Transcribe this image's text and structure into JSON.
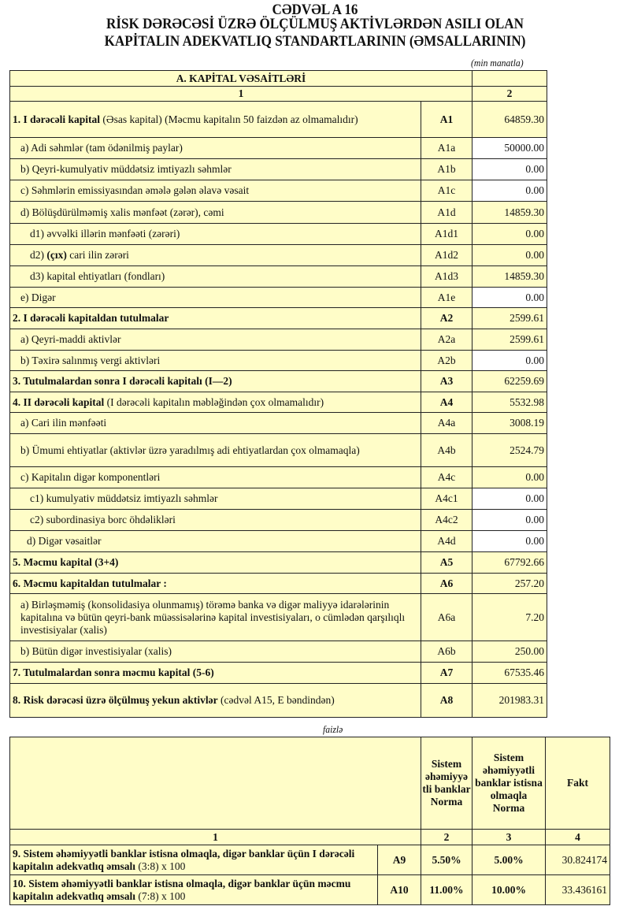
{
  "header": {
    "line1": "CƏDVƏL A 16",
    "line2": "RİSK DƏRƏCƏSİ ÜZRƏ ÖLÇÜLMUŞ AKTİVLƏRDƏN ASILI OLAN",
    "line3": "KAPİTALIN ADEKVATLIQ STANDARTLARININ (ƏMSALLARININ)",
    "unit": "(min manatla)"
  },
  "table1": {
    "section_title": "A. KAPİTAL VƏSAİTLƏRİ",
    "col_numbers": [
      "1",
      "2"
    ],
    "rows": [
      {
        "parts": [
          {
            "t": "1. I dərəcəli kapital",
            "b": true
          },
          {
            "t": " (Əsas kapital) (Məcmu kapitalın 50 faizdən  az olmamalıdır)"
          }
        ],
        "code": "A1",
        "code_bold": true,
        "value": "64859.30",
        "value_bg": "yellow"
      },
      {
        "parts": [
          {
            "t": "a) Adi səhmlər (tam ödənilmiş paylar)"
          }
        ],
        "code": "A1a",
        "value": "50000.00",
        "value_bg": "white"
      },
      {
        "parts": [
          {
            "t": "b) Qeyri-kumulyativ müddətsiz imtiyazlı səhmlər"
          }
        ],
        "code": "A1b",
        "value": "0.00",
        "value_bg": "white"
      },
      {
        "parts": [
          {
            "t": "c) Səhmlərin emissiyasından əmələ gələn  əlavə vəsait"
          }
        ],
        "code": "A1c",
        "value": "0.00",
        "value_bg": "white"
      },
      {
        "parts": [
          {
            "t": "d)   Bölüşdürülməmiş xalis mənfəət (zərər), cəmi"
          }
        ],
        "code": "A1d",
        "value": "14859.30",
        "value_bg": "yellow"
      },
      {
        "parts": [
          {
            "t": "d1) əvvəlki illərin mənfəəti (zərəri)"
          }
        ],
        "code": "A1d1",
        "value": "0.00",
        "value_bg": "yellow"
      },
      {
        "parts": [
          {
            "t": "d2) "
          },
          {
            "t": "(çıx)",
            "b": true
          },
          {
            "t": " cari ilin zərəri"
          }
        ],
        "code": "A1d2",
        "value": "0.00",
        "value_bg": "yellow"
      },
      {
        "parts": [
          {
            "t": "d3) kapital ehtiyatları (fondları)"
          }
        ],
        "code": "A1d3",
        "value": "14859.30",
        "value_bg": "yellow"
      },
      {
        "parts": [
          {
            "t": "e) Digər"
          }
        ],
        "code": "A1e",
        "value": "0.00",
        "value_bg": "white"
      },
      {
        "parts": [
          {
            "t": "2. I dərəcəli kapitaldan  tutulmalar",
            "b": true
          }
        ],
        "code": "A2",
        "code_bold": true,
        "value": "2599.61",
        "value_bg": "yellow"
      },
      {
        "parts": [
          {
            "t": "a) Qeyri-maddi aktivlər"
          }
        ],
        "code": "A2a",
        "value": "2599.61",
        "value_bg": "yellow"
      },
      {
        "parts": [
          {
            "t": "b) Təxirə salınmış vergi aktivləri"
          }
        ],
        "code": "A2b",
        "value": "0.00",
        "value_bg": "white"
      },
      {
        "parts": [
          {
            "t": "3. Tutulmalardan  sonra I dərəcəli kapitalı (I—2)",
            "b": true
          }
        ],
        "code": "A3",
        "code_bold": true,
        "value": "62259.69",
        "value_bg": "yellow"
      },
      {
        "parts": [
          {
            "t": "4. II dərəcəli  kapital",
            "b": true
          },
          {
            "t": " (I dərəcəli  kapitalın  məbləğindən çox olmamalıdır)"
          }
        ],
        "code": "A4",
        "code_bold": true,
        "value": "5532.98",
        "value_bg": "yellow"
      },
      {
        "parts": [
          {
            "t": "a) Cari ilin mənfəəti"
          }
        ],
        "code": "A4a",
        "value": "3008.19",
        "value_bg": "yellow"
      },
      {
        "parts": [
          {
            "t": "b) Ümumi ehtiyatlar (aktivlər üzrə yaradılmış adi ehtiyatlardan çox olmamaqla)"
          }
        ],
        "code": "A4b",
        "value": "2524.79",
        "value_bg": "yellow"
      },
      {
        "parts": [
          {
            "t": "c)  Kapitalın digər komponentləri"
          }
        ],
        "code": "A4c",
        "value": "0.00",
        "value_bg": "yellow"
      },
      {
        "parts": [
          {
            "t": "c1) kumulyativ müddətsiz imtiyazlı səhmlər"
          }
        ],
        "code": "A4c1",
        "value": "0.00",
        "value_bg": "white"
      },
      {
        "parts": [
          {
            "t": "c2) subordinasiya borc öhdəlikləri"
          }
        ],
        "code": "A4c2",
        "value": "0.00",
        "value_bg": "white"
      },
      {
        "parts": [
          {
            "t": "d) Digər vəsaitlər"
          }
        ],
        "code": "A4d",
        "value": "0.00",
        "value_bg": "white"
      },
      {
        "parts": [
          {
            "t": "5. Məcmu kapital (3+4)",
            "b": true
          }
        ],
        "code": "A5",
        "code_bold": true,
        "value": "67792.66",
        "value_bg": "yellow"
      },
      {
        "parts": [
          {
            "t": "6. Məcmu kapitaldan tutulmalar :",
            "b": true
          }
        ],
        "code": "A6",
        "code_bold": true,
        "value": "257.20",
        "value_bg": "yellow"
      },
      {
        "parts": [
          {
            "t": "a)   Birləşməmiş (konsolidasiya olunmamış) törəmə banka və digər maliyyə idarələrinin kapitalına və bütün qeyri-bank müəssisələrinə kapital investisiyaları, o cümlədən qarşılıqlı investisiyalar (xalis)"
          }
        ],
        "code": "A6a",
        "value": "7.20",
        "value_bg": "yellow"
      },
      {
        "parts": [
          {
            "t": "b)    Bütün digər investisiyalar (xalis)"
          }
        ],
        "code": "A6b",
        "value": "250.00",
        "value_bg": "yellow"
      },
      {
        "parts": [
          {
            "t": "7. Tutulmalardan  sonra məcmu kapital (5-6)",
            "b": true
          }
        ],
        "code": "A7",
        "code_bold": true,
        "value": "67535.46",
        "value_bg": "yellow"
      },
      {
        "parts": [
          {
            "t": "8. Risk dərəcəsi üzrə ölçülmuş  yekun aktivlər",
            "b": true
          },
          {
            "t": "  (cədvəl A15, E bəndindən)"
          }
        ],
        "code": "A8",
        "code_bold": true,
        "value": "201983.31",
        "value_bg": "yellow"
      }
    ]
  },
  "table2": {
    "unit": "faizlə",
    "headers": [
      "",
      "Sistem əhəmiyyətli banklar Norma",
      "Sistem əhəmiyyətli banklar istisna olmaqla Norma",
      "Fakt"
    ],
    "header_col2": "Sistem əhəmiyyə tli banklar Norma",
    "col_numbers": [
      "1",
      "2",
      "3",
      "4"
    ],
    "rows": [
      {
        "parts": [
          {
            "t": "9. Sistem əhəmiyyətli banklar istisna olmaqla, digər banklar üçün I dərəcəli  kapitalın  adekvatlıq əmsalı",
            "b": true
          },
          {
            "t": " (3:8) x 100"
          }
        ],
        "code": "A9",
        "norm_sib": "5.50%",
        "norm_other": "5.00%",
        "fakt": "30.824174"
      },
      {
        "parts": [
          {
            "t": "10. Sistem əhəmiyyətli banklar istisna olmaqla, digər banklar üçün məcmu kapitalın  adekvatlıq  əmsalı",
            "b": true
          },
          {
            "t": " (7:8) x 100"
          }
        ],
        "code": "A10",
        "norm_sib": "11.00%",
        "norm_other": "10.00%",
        "fakt": "33.436161"
      }
    ]
  },
  "colors": {
    "cell_fill": "#FFFDC8",
    "input_fill": "#FFFFFF",
    "border": "#222222"
  }
}
